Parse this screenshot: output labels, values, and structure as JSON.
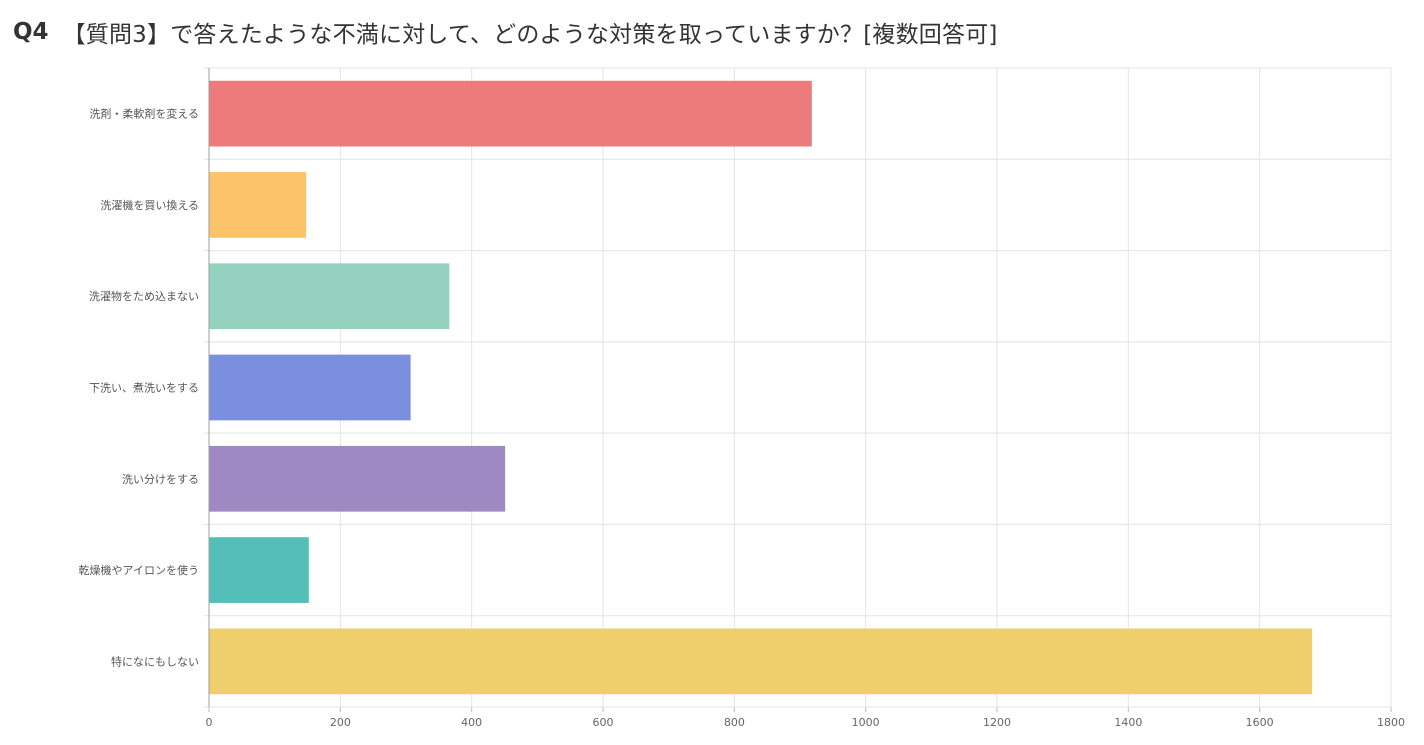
{
  "header": {
    "question_number": "Q4",
    "question_text": "【質問3】で答えたような不満に対して、どのような対策を取っていますか？[複数回答可]"
  },
  "chart_data": {
    "type": "bar",
    "orientation": "horizontal",
    "title": "",
    "xlabel": "",
    "ylabel": "",
    "categories": [
      "洗剤・柔軟剤を変える",
      "洗濯機を買い換える",
      "洗濯物をため込まない",
      "下洗い、煮洗いをする",
      "洗い分けをする",
      "乾燥機やアイロンを使う",
      "特になにもしない"
    ],
    "values": [
      918,
      148,
      366,
      307,
      451,
      152,
      1680
    ],
    "colors": [
      "#ee7b7b",
      "#fdc36b",
      "#94d2bf",
      "#7a90df",
      "#9f89c2",
      "#53bfb8",
      "#efcf6b"
    ],
    "xlim": [
      0,
      1800
    ],
    "xticks": [
      "0",
      "200",
      "400",
      "600",
      "800",
      "1000",
      "1200",
      "1400",
      "1600",
      "1800"
    ],
    "grid": true,
    "legend": "none"
  }
}
